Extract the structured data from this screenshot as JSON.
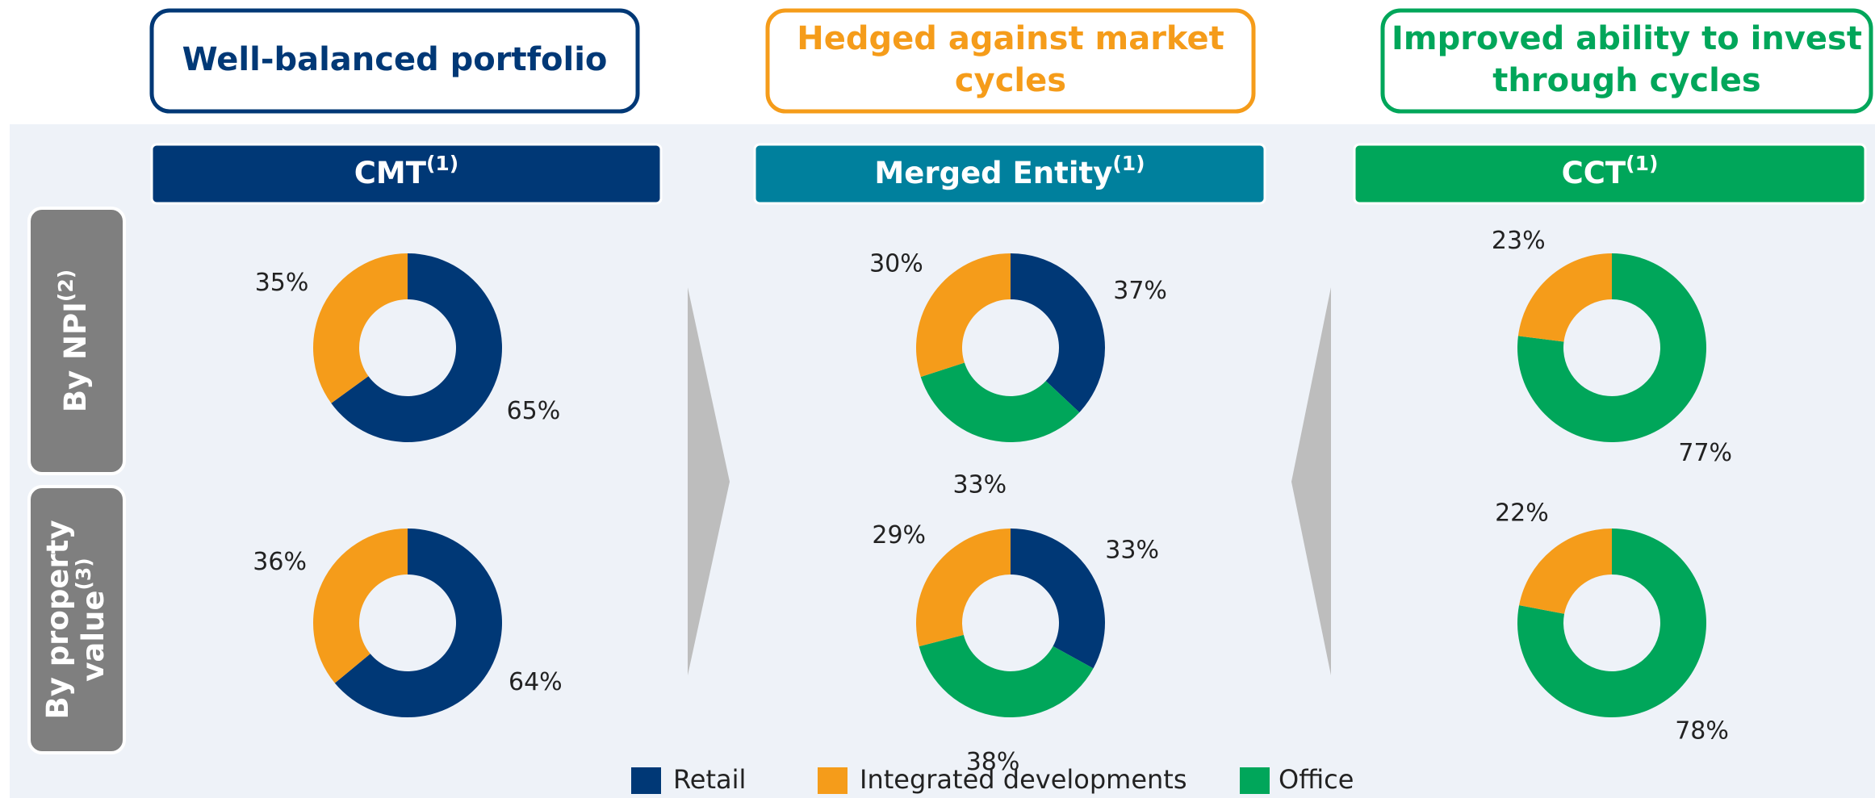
{
  "headers": [
    {
      "lines": [
        "Well-balanced portfolio"
      ],
      "color": "#003876"
    },
    {
      "lines": [
        "Hedged against market",
        "cycles"
      ],
      "color": "#f59c1a"
    },
    {
      "lines": [
        "Improved ability to invest",
        "through cycles"
      ],
      "color": "#00a65a"
    }
  ],
  "columns": [
    {
      "name": "CMT",
      "note": "(1)",
      "color": "#003876"
    },
    {
      "name": "Merged Entity",
      "note": "(1)",
      "color": "#00809d"
    },
    {
      "name": "CCT",
      "note": "(1)",
      "color": "#00a65a"
    }
  ],
  "rows": [
    {
      "lines": [
        "By NPI"
      ],
      "note": "(2)"
    },
    {
      "lines": [
        "By property",
        "value"
      ],
      "note": "(3)"
    }
  ],
  "legend": {
    "labels": [
      "Retail",
      "Integrated developments",
      "Office"
    ],
    "colors": [
      "#003876",
      "#f59c1a",
      "#00a65a"
    ]
  },
  "chart_data": [
    {
      "type": "pie",
      "values": [
        65,
        35
      ],
      "value_labels": [
        "65%",
        "35%"
      ],
      "colors": [
        "#003876",
        "#f59c1a"
      ]
    },
    {
      "type": "pie",
      "values": [
        37,
        33,
        30
      ],
      "value_labels": [
        "37%",
        "33%",
        "30%"
      ],
      "colors": [
        "#003876",
        "#00a65a",
        "#f59c1a"
      ]
    },
    {
      "type": "pie",
      "values": [
        77,
        23
      ],
      "value_labels": [
        "77%",
        "23%"
      ],
      "colors": [
        "#00a65a",
        "#f59c1a"
      ]
    },
    {
      "type": "pie",
      "values": [
        64,
        36
      ],
      "value_labels": [
        "64%",
        "36%"
      ],
      "colors": [
        "#003876",
        "#f59c1a"
      ]
    },
    {
      "type": "pie",
      "values": [
        33,
        38,
        29
      ],
      "value_labels": [
        "33%",
        "38%",
        "29%"
      ],
      "colors": [
        "#003876",
        "#00a65a",
        "#f59c1a"
      ]
    },
    {
      "type": "pie",
      "values": [
        78,
        22
      ],
      "value_labels": [
        "78%",
        "22%"
      ],
      "colors": [
        "#00a65a",
        "#f59c1a"
      ]
    }
  ]
}
